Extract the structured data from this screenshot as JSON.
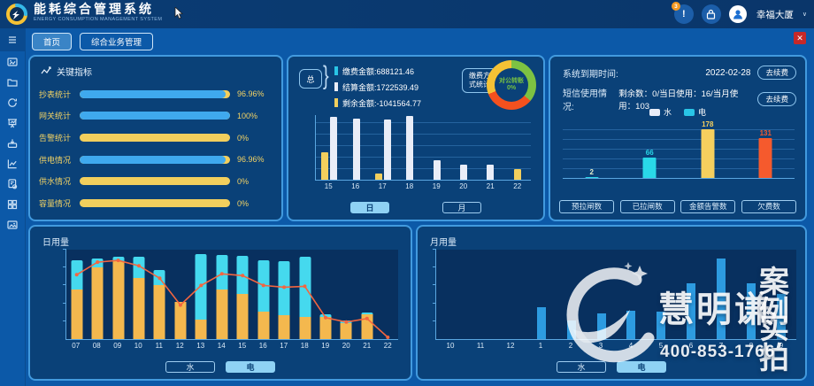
{
  "header": {
    "title": "能耗综合管理系统",
    "subtitle": "ENERGY CONSUMPTION MANAGEMENT SYSTEM",
    "alert_glyph": "!",
    "notification_badge": "3",
    "user_name": "幸福大厦",
    "chevron": "∨"
  },
  "overlay": {
    "close_glyph": "✕"
  },
  "tabs": [
    {
      "label": "首页",
      "active": true
    },
    {
      "label": "综合业务管理",
      "active": false
    }
  ],
  "sidebar": {
    "icons": [
      "menu-icon",
      "screen-icon",
      "folder-icon",
      "refresh-icon",
      "presentation-icon",
      "download-icon",
      "line-chart-icon",
      "document-gear-icon",
      "grid-icon",
      "gallery-icon"
    ]
  },
  "kpi": {
    "title": "关键指标",
    "items": [
      {
        "label": "抄表统计",
        "value": "96.96%",
        "pct": 96.96
      },
      {
        "label": "网关统计",
        "value": "100%",
        "pct": 100
      },
      {
        "label": "告警统计",
        "value": "0%",
        "pct": 0
      },
      {
        "label": "供电情况",
        "value": "96.96%",
        "pct": 96.96
      },
      {
        "label": "供水情况",
        "value": "0%",
        "pct": 0
      },
      {
        "label": "容量情况",
        "value": "0%",
        "pct": 0
      }
    ]
  },
  "payment": {
    "group_label": "总",
    "legend": [
      {
        "label": "缴费金额:688121.46",
        "color": "#29c5e6"
      },
      {
        "label": "结算金额:1722539.49",
        "color": "#e9edf8"
      },
      {
        "label": "剩余金额:-1041564.77",
        "color": "#f2cf5d"
      }
    ],
    "method_label_line1": "缴费方",
    "method_label_line2": "式统计",
    "tabs": [
      {
        "label": "日",
        "active": true
      },
      {
        "label": "月",
        "active": false
      }
    ]
  },
  "system": {
    "expire_label": "系统到期时间:",
    "expire_value": "2022-02-28",
    "renew_button": "去续费",
    "sms_label": "短信使用情况:",
    "sms_value": "剩余数：0/当日使用：16/当月使用：103",
    "legend": [
      {
        "label": "水",
        "color": "#e9edf8"
      },
      {
        "label": "电",
        "color": "#29c5e6"
      }
    ],
    "category_buttons": [
      "预拉闸数",
      "已拉闸数",
      "金额告警数",
      "欠费数"
    ]
  },
  "daily": {
    "title": "日用量",
    "tabs": [
      {
        "label": "水",
        "active": false
      },
      {
        "label": "电",
        "active": true
      }
    ]
  },
  "monthly": {
    "title": "月用量",
    "tabs": [
      {
        "label": "水",
        "active": false
      },
      {
        "label": "电",
        "active": true
      }
    ]
  },
  "watermark": {
    "brand": "慧明谦",
    "tag_top": "案例",
    "tag_bottom": "实拍",
    "phone": "400-853-1766"
  },
  "chart_data": [
    {
      "id": "payment_by_day",
      "type": "bar",
      "categories": [
        "15",
        "16",
        "17",
        "18",
        "19",
        "20",
        "21",
        "22"
      ],
      "series": [
        {
          "key": "remain",
          "name": "剩余金额",
          "color": "#f2cf5d",
          "values": [
            42,
            0,
            10,
            0,
            0,
            0,
            0,
            16
          ]
        },
        {
          "key": "settle",
          "name": "结算金额",
          "color": "#e9edf8",
          "values": [
            97,
            95,
            93,
            98,
            30,
            23,
            23,
            0
          ]
        }
      ],
      "ylim": [
        0,
        100
      ],
      "grid": true,
      "legend_position": "top-left"
    },
    {
      "id": "payment_method_donut",
      "type": "pie",
      "center_label": "对公转账",
      "center_value": "0%",
      "segments": [
        {
          "color": "#7dc242",
          "pct": 36
        },
        {
          "color": "#f4511e",
          "pct": 33
        },
        {
          "color": "#f5c235",
          "pct": 31
        }
      ]
    },
    {
      "id": "alarm_counts",
      "type": "bar",
      "categories": [
        "预拉闸数",
        "已拉闸数",
        "金额告警数",
        "欠费数"
      ],
      "values": [
        2,
        66,
        178,
        131
      ],
      "colors": [
        "#29d8e8",
        "#29d8e8",
        "#f5cf5e",
        "#f55a2d"
      ],
      "value_colors": [
        "#e6eecb",
        "#29d8e8",
        "#f5cf5e",
        "#f55a2d"
      ],
      "ylim": [
        0,
        190
      ],
      "grid": true,
      "legend": [
        "水",
        "电"
      ]
    },
    {
      "id": "daily_usage",
      "type": "stacked-bar-line",
      "title": "日用量",
      "categories": [
        "07",
        "08",
        "09",
        "10",
        "11",
        "12",
        "13",
        "14",
        "15",
        "16",
        "17",
        "18",
        "19",
        "20",
        "21",
        "22"
      ],
      "series": [
        {
          "key": "water",
          "name": "水",
          "color": "#f4b84e",
          "values": [
            55,
            80,
            87,
            68,
            60,
            42,
            22,
            55,
            51,
            31,
            27,
            25,
            25,
            18,
            28,
            0
          ]
        },
        {
          "key": "electric",
          "name": "电",
          "color": "#45d9ee",
          "values": [
            33,
            10,
            5,
            24,
            17,
            0,
            73,
            39,
            42,
            57,
            60,
            67,
            3,
            3,
            2,
            0
          ]
        }
      ],
      "line": {
        "color": "#f4653f",
        "values": [
          72,
          86,
          88,
          82,
          68,
          38,
          60,
          73,
          71,
          60,
          58,
          59,
          24,
          19,
          23,
          2
        ]
      },
      "ylim": [
        0,
        100
      ],
      "grid": false
    },
    {
      "id": "monthly_usage",
      "type": "bar",
      "title": "月用量",
      "categories": [
        "10",
        "11",
        "12",
        "1",
        "2",
        "3",
        "4",
        "5",
        "6",
        "7",
        "8",
        "9"
      ],
      "values": [
        0,
        0,
        0,
        36,
        21,
        29,
        32,
        31,
        62,
        90,
        62,
        51
      ],
      "color": "#2d9be0",
      "ylim": [
        0,
        100
      ],
      "grid": false
    }
  ]
}
